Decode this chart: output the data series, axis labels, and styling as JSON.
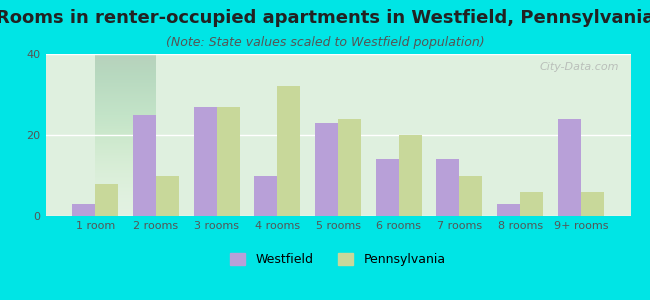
{
  "title": "Rooms in renter-occupied apartments in Westfield, Pennsylvania",
  "subtitle": "(Note: State values scaled to Westfield population)",
  "categories": [
    "1 room",
    "2 rooms",
    "3 rooms",
    "4 rooms",
    "5 rooms",
    "6 rooms",
    "7 rooms",
    "8 rooms",
    "9+ rooms"
  ],
  "westfield": [
    3,
    25,
    27,
    10,
    23,
    14,
    14,
    3,
    24
  ],
  "pennsylvania": [
    8,
    10,
    27,
    32,
    24,
    20,
    10,
    6,
    6
  ],
  "westfield_color": "#b8a0d8",
  "pennsylvania_color": "#c8d89a",
  "background_outer": "#00e5e5",
  "background_inner_top": "#e8f5e8",
  "background_inner_bottom": "#f0f8f0",
  "ylim": [
    0,
    40
  ],
  "yticks": [
    0,
    20,
    40
  ],
  "bar_width": 0.38,
  "figsize": [
    6.5,
    3.0
  ],
  "dpi": 100,
  "title_fontsize": 13,
  "subtitle_fontsize": 9,
  "tick_fontsize": 8,
  "legend_fontsize": 9,
  "watermark": "City-Data.com"
}
